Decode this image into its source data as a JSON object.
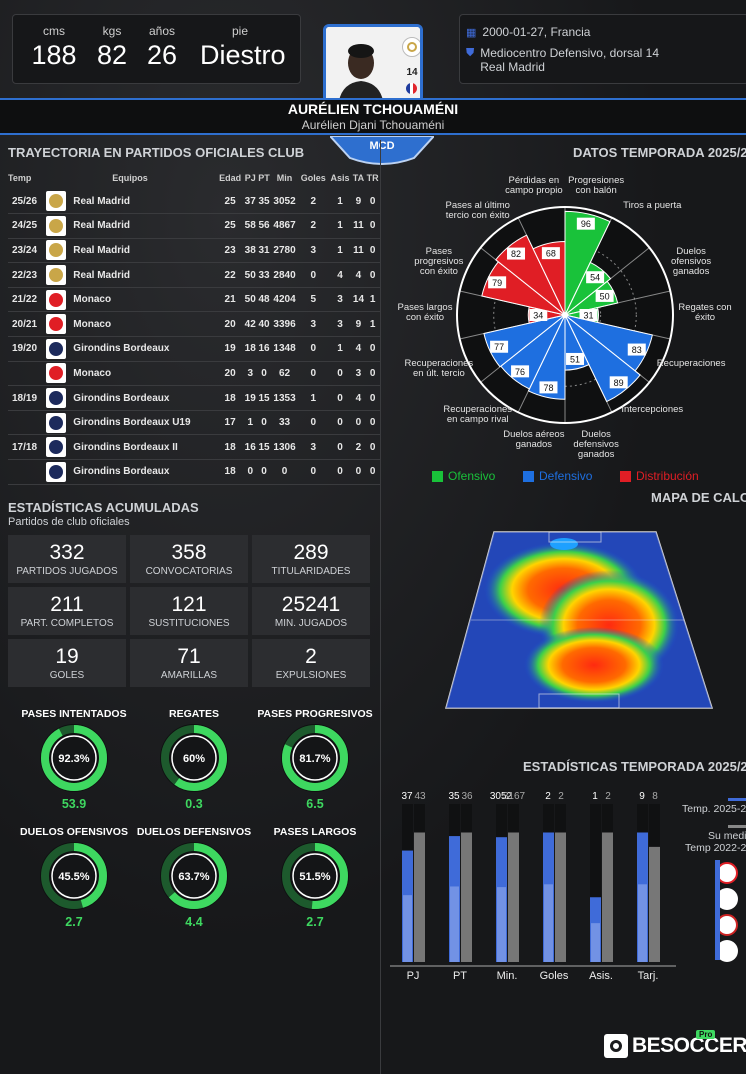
{
  "header": {
    "physical": [
      {
        "label": "cms",
        "value": "188"
      },
      {
        "label": "kgs",
        "value": "82"
      },
      {
        "label": "años",
        "value": "26"
      },
      {
        "label": "pie",
        "value": "Diestro"
      }
    ],
    "dorsal": "14",
    "birth": "2000-01-27, Francia",
    "position_line": "Mediocentro Defensivo, dorsal 14",
    "club": "Real Madrid",
    "name": "AURÉLIEN TCHOUAMÉNI",
    "full_name": "Aurélien Djani Tchouaméni",
    "role_badge": "MCD"
  },
  "career": {
    "title": "TRAYECTORIA EN PARTIDOS OFICIALES CLUB",
    "columns": [
      "Temp",
      "Equipos",
      "Edad",
      "PJ",
      "PT",
      "Min",
      "Goles",
      "Asis",
      "TA",
      "TR"
    ],
    "rows": [
      {
        "season": "25/26",
        "team": "Real Madrid",
        "crest": "rm",
        "edad": "25",
        "pj": "37",
        "pt": "35",
        "min": "3052",
        "goles": "2",
        "asis": "1",
        "ta": "9",
        "tr": "0"
      },
      {
        "season": "24/25",
        "team": "Real Madrid",
        "crest": "rm",
        "edad": "25",
        "pj": "58",
        "pt": "56",
        "min": "4867",
        "goles": "2",
        "asis": "1",
        "ta": "11",
        "tr": "0"
      },
      {
        "season": "23/24",
        "team": "Real Madrid",
        "crest": "rm",
        "edad": "23",
        "pj": "38",
        "pt": "31",
        "min": "2780",
        "goles": "3",
        "asis": "1",
        "ta": "11",
        "tr": "0"
      },
      {
        "season": "22/23",
        "team": "Real Madrid",
        "crest": "rm",
        "edad": "22",
        "pj": "50",
        "pt": "33",
        "min": "2840",
        "goles": "0",
        "asis": "4",
        "ta": "4",
        "tr": "0"
      },
      {
        "season": "21/22",
        "team": "Monaco",
        "crest": "mon",
        "edad": "21",
        "pj": "50",
        "pt": "48",
        "min": "4204",
        "goles": "5",
        "asis": "3",
        "ta": "14",
        "tr": "1"
      },
      {
        "season": "20/21",
        "team": "Monaco",
        "crest": "mon",
        "edad": "20",
        "pj": "42",
        "pt": "40",
        "min": "3396",
        "goles": "3",
        "asis": "3",
        "ta": "9",
        "tr": "1"
      },
      {
        "season": "19/20",
        "team": "Girondins Bordeaux",
        "crest": "bor",
        "edad": "19",
        "pj": "18",
        "pt": "16",
        "min": "1348",
        "goles": "0",
        "asis": "1",
        "ta": "4",
        "tr": "0"
      },
      {
        "season": "",
        "team": "Monaco",
        "crest": "mon",
        "edad": "20",
        "pj": "3",
        "pt": "0",
        "min": "62",
        "goles": "0",
        "asis": "0",
        "ta": "3",
        "tr": "0"
      },
      {
        "season": "18/19",
        "team": "Girondins Bordeaux",
        "crest": "bor",
        "edad": "18",
        "pj": "19",
        "pt": "15",
        "min": "1353",
        "goles": "1",
        "asis": "0",
        "ta": "4",
        "tr": "0"
      },
      {
        "season": "",
        "team": "Girondins Bordeaux U19",
        "crest": "bor",
        "edad": "17",
        "pj": "1",
        "pt": "0",
        "min": "33",
        "goles": "0",
        "asis": "0",
        "ta": "0",
        "tr": "0"
      },
      {
        "season": "17/18",
        "team": "Girondins Bordeaux II",
        "crest": "bor",
        "edad": "18",
        "pj": "16",
        "pt": "15",
        "min": "1306",
        "goles": "3",
        "asis": "0",
        "ta": "2",
        "tr": "0"
      },
      {
        "season": "",
        "team": "Girondins Bordeaux",
        "crest": "bor",
        "edad": "18",
        "pj": "0",
        "pt": "0",
        "min": "0",
        "goles": "0",
        "asis": "0",
        "ta": "0",
        "tr": "0"
      }
    ]
  },
  "accumulated": {
    "title": "ESTADÍSTICAS ACUMULADAS",
    "subtitle": "Partidos de club oficiales",
    "cards": [
      {
        "value": "332",
        "label": "PARTIDOS JUGADOS"
      },
      {
        "value": "358",
        "label": "CONVOCATORIAS"
      },
      {
        "value": "289",
        "label": "TITULARIDADES"
      },
      {
        "value": "211",
        "label": "PART. COMPLETOS"
      },
      {
        "value": "121",
        "label": "SUSTITUCIONES"
      },
      {
        "value": "25241",
        "label": "MIN. JUGADOS"
      },
      {
        "value": "19",
        "label": "GOLES"
      },
      {
        "value": "71",
        "label": "AMARILLAS"
      },
      {
        "value": "2",
        "label": "EXPULSIONES"
      }
    ]
  },
  "donuts": [
    {
      "title": "PASES INTENTADOS",
      "pct_label": "92.3%",
      "pct": 92.3,
      "value": "53.9"
    },
    {
      "title": "REGATES",
      "pct_label": "60%",
      "pct": 60,
      "value": "0.3"
    },
    {
      "title": "PASES PROGRESIVOS",
      "pct_label": "81.7%",
      "pct": 81.7,
      "value": "6.5"
    },
    {
      "title": "DUELOS OFENSIVOS",
      "pct_label": "45.5%",
      "pct": 45.5,
      "value": "2.7"
    },
    {
      "title": "DUELOS DEFENSIVOS",
      "pct_label": "63.7%",
      "pct": 63.7,
      "value": "4.4"
    },
    {
      "title": "PASES LARGOS",
      "pct_label": "51.5%",
      "pct": 51.5,
      "value": "2.7"
    }
  ],
  "radar": {
    "title": "DATOS TEMPORADA 2025/2",
    "colors": {
      "ofensivo": "#19c23a",
      "defensivo": "#1e6fe0",
      "distribucion": "#e01e25"
    },
    "legend": [
      "Ofensivo",
      "Defensivo",
      "Distribución"
    ],
    "segments": [
      {
        "label": "Progresiones\ncon balón",
        "value": 96,
        "group": "ofensivo"
      },
      {
        "label": "Tiros a puerta",
        "value": 54,
        "group": "ofensivo"
      },
      {
        "label": "Duelos\nofensivos\nganados",
        "value": 50,
        "group": "ofensivo"
      },
      {
        "label": "Regates con\néxito",
        "value": 31,
        "group": "ofensivo"
      },
      {
        "label": "Recuperaciones",
        "value": 83,
        "group": "defensivo"
      },
      {
        "label": "Intercepciones",
        "value": 89,
        "group": "defensivo"
      },
      {
        "label": "Duelos\ndefensivos\nganados",
        "value": 51,
        "group": "defensivo"
      },
      {
        "label": "Duelos aéreos\nganados",
        "value": 78,
        "group": "defensivo"
      },
      {
        "label": "Recuperaciones\nen campo rival",
        "value": 76,
        "group": "defensivo"
      },
      {
        "label": "Recuperaciones\nen últ. tercio",
        "value": 77,
        "group": "defensivo"
      },
      {
        "label": "Pases largos\ncon éxito",
        "value": 34,
        "group": "distribucion"
      },
      {
        "label": "Pases\nprogresivos\ncon éxito",
        "value": 79,
        "group": "distribucion"
      },
      {
        "label": "Pases al último\ntercio con éxito",
        "value": 82,
        "group": "distribucion"
      },
      {
        "label": "Pérdidas en\ncampo propio",
        "value": 68,
        "group": "distribucion"
      }
    ]
  },
  "heatmap_title": "MAPA DE CALO",
  "season_stats": {
    "title": "ESTADÍSTICAS TEMPORADA 2025/2",
    "legend_a": "Temp. 2025-2",
    "legend_b": "Su medi",
    "legend_c": "Temp 2022-2"
  },
  "chart_data": {
    "type": "bar",
    "categories": [
      "PJ",
      "PT",
      "Min.",
      "Goles",
      "Asis.",
      "Tarj."
    ],
    "series": [
      {
        "name": "Temp. 2025-2",
        "values": [
          37,
          35,
          3052,
          2,
          1,
          9
        ]
      },
      {
        "name": "Su medi",
        "values": [
          43,
          36,
          3167,
          2,
          2,
          8
        ]
      }
    ]
  },
  "brand": {
    "name": "BESOCCER",
    "badge": "Pro"
  }
}
